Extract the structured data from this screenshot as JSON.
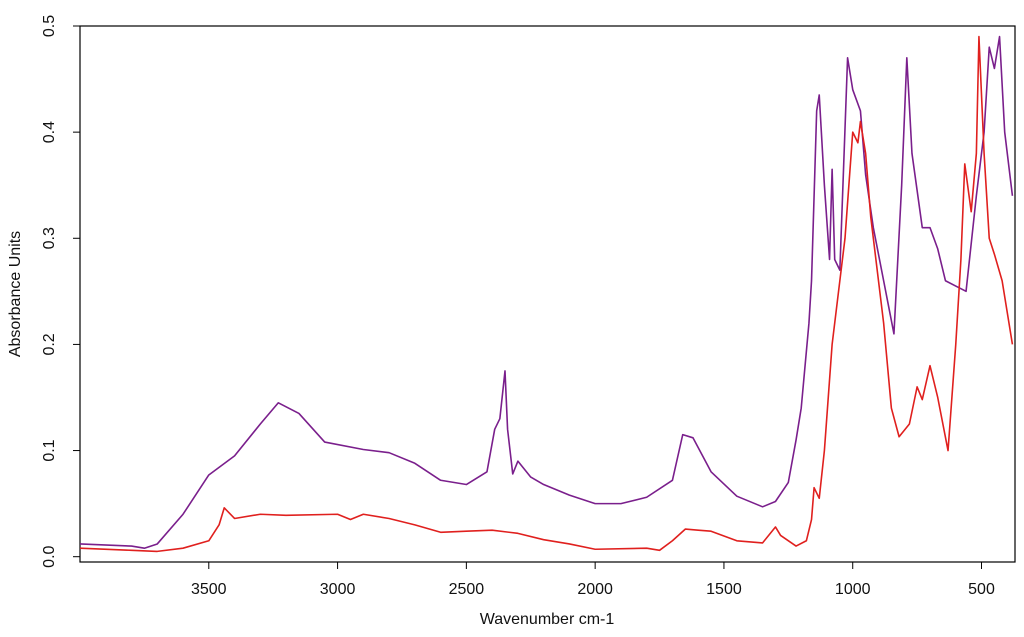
{
  "chart_data": {
    "type": "line",
    "x_label": "Wavenumber cm-1",
    "y_label": "Absorbance Units",
    "xlim": [
      4000,
      370
    ],
    "ylim": [
      -0.005,
      0.5
    ],
    "reverse_x": true,
    "xticks": [
      3500,
      3000,
      2500,
      2000,
      1500,
      1000,
      500
    ],
    "yticks": [
      {
        "value": 0,
        "label": "0.0"
      },
      0.1,
      0.2,
      0.3,
      0.4,
      0.5
    ],
    "grid": false,
    "series": [
      {
        "color": "#7a1f8c",
        "x": [
          4000,
          3800,
          3750,
          3700,
          3600,
          3500,
          3400,
          3300,
          3230,
          3150,
          3050,
          2900,
          2800,
          2700,
          2600,
          2500,
          2420,
          2390,
          2370,
          2350,
          2340,
          2320,
          2300,
          2250,
          2200,
          2100,
          2000,
          1900,
          1800,
          1700,
          1660,
          1620,
          1550,
          1450,
          1350,
          1300,
          1250,
          1220,
          1200,
          1170,
          1160,
          1140,
          1130,
          1110,
          1090,
          1080,
          1070,
          1050,
          1020,
          1000,
          970,
          950,
          920,
          880,
          840,
          810,
          790,
          770,
          730,
          700,
          670,
          640,
          600,
          560,
          520,
          490,
          470,
          450,
          430,
          410,
          380
        ],
        "values": [
          0.012,
          0.01,
          0.008,
          0.012,
          0.04,
          0.077,
          0.095,
          0.125,
          0.145,
          0.135,
          0.108,
          0.101,
          0.098,
          0.088,
          0.072,
          0.068,
          0.08,
          0.12,
          0.13,
          0.175,
          0.12,
          0.078,
          0.09,
          0.075,
          0.068,
          0.058,
          0.05,
          0.05,
          0.056,
          0.072,
          0.115,
          0.112,
          0.08,
          0.057,
          0.047,
          0.052,
          0.07,
          0.11,
          0.14,
          0.22,
          0.26,
          0.42,
          0.435,
          0.35,
          0.28,
          0.365,
          0.28,
          0.27,
          0.47,
          0.44,
          0.42,
          0.36,
          0.31,
          0.26,
          0.21,
          0.35,
          0.47,
          0.38,
          0.31,
          0.31,
          0.29,
          0.26,
          0.255,
          0.25,
          0.34,
          0.4,
          0.48,
          0.46,
          0.49,
          0.4,
          0.34
        ]
      },
      {
        "color": "#e0201e",
        "x": [
          4000,
          3800,
          3700,
          3600,
          3500,
          3460,
          3440,
          3400,
          3300,
          3200,
          3000,
          2950,
          2900,
          2800,
          2700,
          2600,
          2500,
          2400,
          2300,
          2200,
          2100,
          2000,
          1800,
          1750,
          1700,
          1650,
          1600,
          1550,
          1450,
          1350,
          1300,
          1280,
          1220,
          1180,
          1160,
          1150,
          1130,
          1110,
          1080,
          1060,
          1030,
          1000,
          980,
          970,
          950,
          930,
          920,
          880,
          850,
          820,
          780,
          750,
          730,
          700,
          670,
          630,
          600,
          580,
          565,
          540,
          520,
          510,
          490,
          470,
          450,
          420,
          380
        ],
        "values": [
          0.008,
          0.006,
          0.005,
          0.008,
          0.015,
          0.03,
          0.046,
          0.036,
          0.04,
          0.039,
          0.04,
          0.035,
          0.04,
          0.036,
          0.03,
          0.023,
          0.024,
          0.025,
          0.022,
          0.016,
          0.012,
          0.007,
          0.008,
          0.006,
          0.015,
          0.026,
          0.025,
          0.024,
          0.015,
          0.013,
          0.028,
          0.02,
          0.01,
          0.015,
          0.035,
          0.065,
          0.055,
          0.1,
          0.2,
          0.24,
          0.3,
          0.4,
          0.39,
          0.41,
          0.38,
          0.32,
          0.3,
          0.22,
          0.14,
          0.113,
          0.125,
          0.16,
          0.148,
          0.18,
          0.15,
          0.1,
          0.2,
          0.28,
          0.37,
          0.325,
          0.38,
          0.49,
          0.38,
          0.3,
          0.285,
          0.26,
          0.2
        ]
      }
    ]
  }
}
